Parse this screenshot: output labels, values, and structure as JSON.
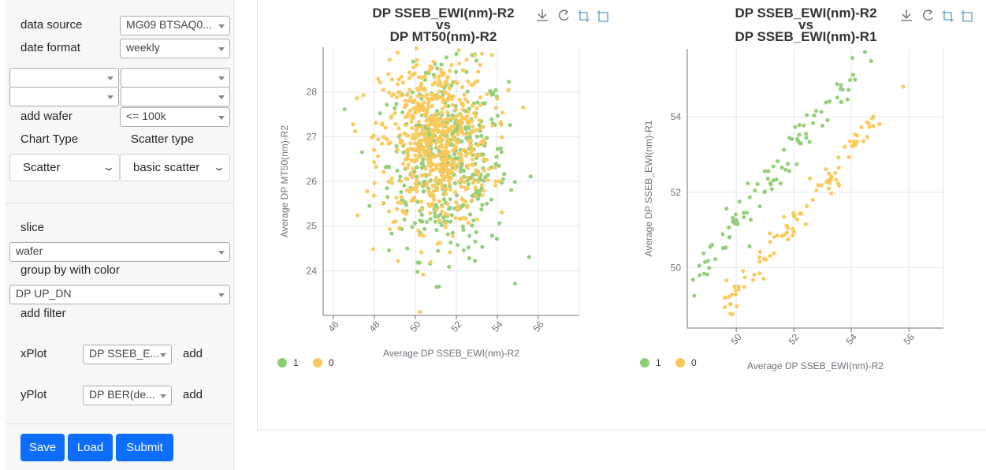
{
  "sidebar": {
    "data_source_label": "data source",
    "data_source_value": "MG09 BTSAQ0...",
    "date_format_label": "date format",
    "date_format_value": "weekly",
    "add_wafer_label": "add wafer",
    "add_wafer_value": "<= 100k",
    "chart_type_label": "Chart Type",
    "chart_type_value": "Scatter",
    "scatter_type_label": "Scatter type",
    "scatter_type_value": "basic scatter",
    "slice_label": "slice",
    "slice_value": "wafer",
    "group_label": "group by with color",
    "group_value": "DP UP_DN",
    "add_filter_label": "add filter",
    "xplot_label": "xPlot",
    "xplot_value": "DP SSEB_E...",
    "yplot_label": "yPlot",
    "yplot_value": "DP BER(de...",
    "add_label": "add",
    "save_label": "Save",
    "load_label": "Load",
    "submit_label": "Submit"
  },
  "colors": {
    "series_1": "#91cc75",
    "series_0": "#fac858",
    "accent": "#0d6efd"
  },
  "chart_data": [
    {
      "type": "scatter",
      "title_line1": "DP SSEB_EWI(nm)-R2",
      "title_line2": "vs",
      "title_line3": "DP MT50(nm)-R2",
      "xlabel": "Average DP SSEB_EWI(nm)-R2",
      "ylabel": "Average DP MT50(nm)-R2",
      "xlim": [
        45.5,
        58.0
      ],
      "ylim": [
        23.0,
        29.0
      ],
      "xticks": [
        "46",
        "48",
        "50",
        "52",
        "54",
        "56"
      ],
      "yticks": [
        "24",
        "25",
        "26",
        "27",
        "28"
      ],
      "series": [
        {
          "name": "1",
          "values_summary": "dense cluster centered near x=51.5, y=26.5"
        },
        {
          "name": "0",
          "values_summary": "dense cluster centered near x=51.0, y=26.8"
        }
      ],
      "legend": "bottom-left"
    },
    {
      "type": "scatter",
      "title_line1": "DP SSEB_EWI(nm)-R2",
      "title_line2": "vs",
      "title_line3": "DP SSEB_EWI(nm)-R1",
      "xlabel": "Average DP SSEB_EWI(nm)-R2",
      "ylabel": "Average DP SSEB_EWI(nm)-R1",
      "xlim": [
        48.3,
        57.2
      ],
      "ylim": [
        48.4,
        55.8
      ],
      "xticks": [
        "50",
        "52",
        "54",
        "56"
      ],
      "yticks": [
        "50",
        "52",
        "54"
      ],
      "series": [
        {
          "name": "1",
          "values_summary": "linear band from (48.3, 49.5) to (54.7, 55.8)"
        },
        {
          "name": "0",
          "values_summary": "linear band from (49.5, 48.8) to (55.8, 54.8)"
        }
      ],
      "legend": "bottom-left"
    }
  ]
}
